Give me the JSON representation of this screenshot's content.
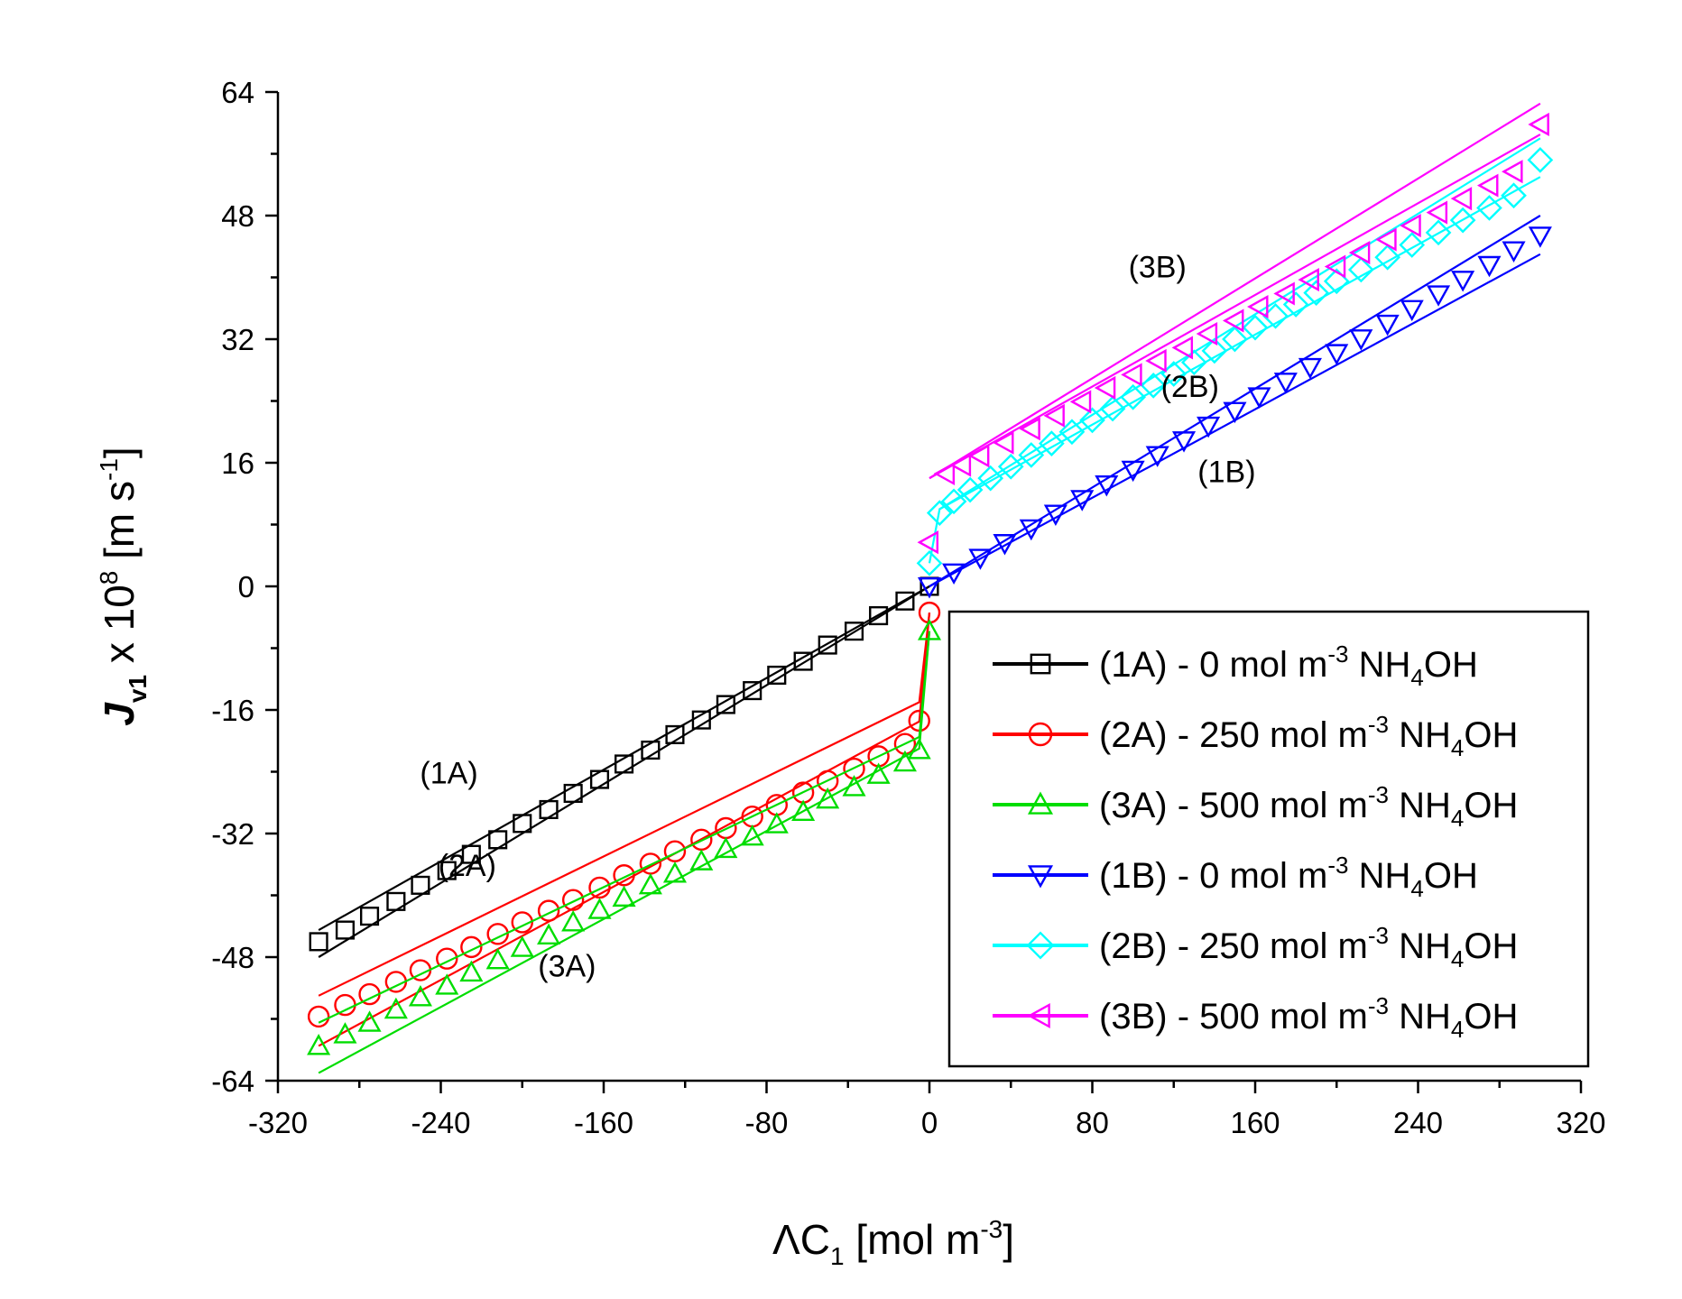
{
  "chart_data": {
    "type": "scatter",
    "title": "",
    "xlabel": {
      "prefix": "ΛC",
      "sub": "1",
      "unit_open": " [mol m",
      "unit_sup": "-3",
      "unit_close": "]"
    },
    "ylabel": {
      "main": "J",
      "sub": "v1",
      "mid": " x 10",
      "sup": "8",
      "unit_open": " [m s",
      "unit_sup": "-1",
      "unit_close": "]"
    },
    "xlim": [
      -320,
      320
    ],
    "ylim": [
      -64,
      64
    ],
    "xticks": [
      -320,
      -240,
      -160,
      -80,
      0,
      80,
      160,
      240,
      320
    ],
    "yticks": [
      -64,
      -48,
      -32,
      -16,
      0,
      16,
      32,
      48,
      64
    ],
    "xtick_labels": [
      "-320",
      "-240",
      "-160",
      "-80",
      "0",
      "80",
      "160",
      "240",
      "320"
    ],
    "ytick_labels": [
      "-64",
      "-48",
      "-32",
      "-16",
      "0",
      "16",
      "32",
      "48",
      "64"
    ],
    "legend": {
      "placement": "lower-right",
      "entries": [
        {
          "code": "(1A)",
          "text": " - 0 mol m",
          "sup": "-3",
          "tail": " NH",
          "sub": "4",
          "end": "OH"
        },
        {
          "code": "(2A)",
          "text": " - 250 mol m",
          "sup": "-3",
          "tail": " NH",
          "sub": "4",
          "end": "OH"
        },
        {
          "code": "(3A)",
          "text": " - 500 mol m",
          "sup": "-3",
          "tail": " NH",
          "sub": "4",
          "end": "OH"
        },
        {
          "code": "(1B)",
          "text": " - 0 mol m",
          "sup": "-3",
          "tail": " NH",
          "sub": "4",
          "end": "OH"
        },
        {
          "code": "(2B)",
          "text": " - 250 mol m",
          "sup": "-3",
          "tail": " NH",
          "sub": "4",
          "end": "OH"
        },
        {
          "code": "(3B)",
          "text": " - 500 mol m",
          "sup": "-3",
          "tail": " NH",
          "sub": "4",
          "end": "OH"
        }
      ]
    },
    "annotations": [
      {
        "text": "(1A)",
        "x": -236,
        "y": -25.5
      },
      {
        "text": "(2A)",
        "x": -227,
        "y": -37.5
      },
      {
        "text": "(3A)",
        "x": -178,
        "y": -50.5
      },
      {
        "text": "(3B)",
        "x": 112,
        "y": 40
      },
      {
        "text": "(2B)",
        "x": 128,
        "y": 24.5
      },
      {
        "text": "(1B)",
        "x": 146,
        "y": 13.5
      }
    ],
    "series": [
      {
        "name": "(1A) - 0 mol m-3 NH4OH",
        "color": "#000000",
        "marker": "square",
        "x": [
          -300,
          -287,
          -275,
          -262,
          -250,
          -237,
          -225,
          -212,
          -200,
          -187,
          -175,
          -162,
          -150,
          -137,
          -125,
          -112,
          -100,
          -87,
          -75,
          -62,
          -50,
          -37,
          -25,
          -12,
          0
        ],
        "y": [
          -46,
          -44.5,
          -42.7,
          -40.8,
          -38.7,
          -36.8,
          -34.7,
          -32.8,
          -30.7,
          -28.9,
          -26.8,
          -25,
          -23,
          -21.2,
          -19.2,
          -17.3,
          -15.3,
          -13.5,
          -11.5,
          -9.7,
          -7.6,
          -5.8,
          -3.8,
          -1.9,
          0
        ],
        "line": [
          [
            -300,
            -48
          ],
          [
            0,
            0
          ]
        ],
        "line2": [
          [
            -300,
            -44.5
          ],
          [
            0,
            0
          ]
        ]
      },
      {
        "name": "(2A) - 250 mol m-3 NH4OH",
        "color": "#ff0000",
        "marker": "circle",
        "x": [
          -300,
          -287,
          -275,
          -262,
          -250,
          -237,
          -225,
          -212,
          -200,
          -187,
          -175,
          -162,
          -150,
          -137,
          -125,
          -112,
          -100,
          -87,
          -75,
          -62,
          -50,
          -37,
          -25,
          -12,
          -5,
          0
        ],
        "y": [
          -55.7,
          -54.2,
          -52.8,
          -51.2,
          -49.7,
          -48.2,
          -46.7,
          -45,
          -43.5,
          -42,
          -40.6,
          -39,
          -37.4,
          -35.9,
          -34.3,
          -32.8,
          -31.3,
          -29.8,
          -28.3,
          -26.7,
          -25.2,
          -23.6,
          -22,
          -20.4,
          -17.4,
          -3.4
        ],
        "line": [
          [
            -300,
            -59.5
          ],
          [
            -5,
            -17.5
          ],
          [
            0,
            -3.4
          ]
        ],
        "line2": [
          [
            -300,
            -53
          ],
          [
            -5,
            -15
          ],
          [
            0,
            -3.4
          ]
        ]
      },
      {
        "name": "(3A) - 500 mol m-3 NH4OH",
        "color": "#00dd00",
        "marker": "triangle-up",
        "x": [
          -300,
          -287,
          -275,
          -262,
          -250,
          -237,
          -225,
          -212,
          -200,
          -187,
          -175,
          -162,
          -150,
          -137,
          -125,
          -112,
          -100,
          -87,
          -75,
          -62,
          -50,
          -37,
          -25,
          -12,
          -5,
          0
        ],
        "y": [
          -59.5,
          -58,
          -56.5,
          -54.8,
          -53.2,
          -51.7,
          -50,
          -48.4,
          -46.8,
          -45.2,
          -43.5,
          -41.9,
          -40.3,
          -38.7,
          -37.2,
          -35.6,
          -34,
          -32.4,
          -30.8,
          -29.2,
          -27.6,
          -26,
          -24.4,
          -22.8,
          -21.2,
          -5.8
        ],
        "line": [
          [
            -300,
            -63
          ],
          [
            -5,
            -21
          ],
          [
            0,
            -5.8
          ]
        ],
        "line2": [
          [
            -300,
            -56.5
          ],
          [
            -5,
            -19.5
          ],
          [
            0,
            -5.8
          ]
        ]
      },
      {
        "name": "(1B) - 0 mol m-3 NH4OH",
        "color": "#0000ff",
        "marker": "triangle-down",
        "x": [
          0,
          12,
          25,
          37,
          50,
          62,
          75,
          87,
          100,
          112,
          125,
          137,
          150,
          162,
          175,
          187,
          200,
          212,
          225,
          237,
          250,
          262,
          275,
          287,
          300
        ],
        "y": [
          0,
          1.8,
          3.7,
          5.6,
          7.5,
          9.4,
          11.3,
          13.2,
          15.1,
          17,
          18.9,
          20.8,
          22.7,
          24.6,
          26.5,
          28.4,
          30.2,
          32.1,
          34,
          35.9,
          37.8,
          39.7,
          41.6,
          43.5,
          45.4
        ],
        "line": [
          [
            0,
            0
          ],
          [
            300,
            43
          ]
        ],
        "line2": [
          [
            0,
            0
          ],
          [
            300,
            48
          ]
        ]
      },
      {
        "name": "(2B) - 250 mol m-3 NH4OH",
        "color": "#00ffff",
        "marker": "diamond",
        "x": [
          0,
          5,
          12,
          20,
          30,
          40,
          50,
          60,
          70,
          80,
          90,
          100,
          110,
          120,
          130,
          140,
          150,
          160,
          170,
          180,
          190,
          200,
          212,
          225,
          237,
          250,
          262,
          275,
          287,
          300
        ],
        "y": [
          3,
          9.5,
          11,
          12.5,
          14,
          15.5,
          17,
          18.5,
          20,
          21.5,
          23,
          24.5,
          26,
          27.5,
          29,
          30.5,
          32,
          33.5,
          35,
          36.5,
          38,
          39.5,
          41,
          42.6,
          44.2,
          45.8,
          47.4,
          49,
          50.6,
          55.2
        ],
        "line": [
          [
            0,
            3
          ],
          [
            5,
            10
          ],
          [
            300,
            53
          ]
        ],
        "line2": [
          [
            5,
            10
          ],
          [
            300,
            58
          ]
        ]
      },
      {
        "name": "(3B) - 500 mol m-3 NH4OH",
        "color": "#ff00ff",
        "marker": "triangle-left",
        "x": [
          0,
          8,
          16,
          25,
          37,
          50,
          62,
          75,
          87,
          100,
          112,
          125,
          137,
          150,
          162,
          175,
          187,
          200,
          212,
          225,
          237,
          250,
          262,
          275,
          287,
          300
        ],
        "y": [
          5.7,
          14.6,
          15.7,
          16.9,
          18.6,
          20.4,
          22.1,
          23.9,
          25.7,
          27.4,
          29.2,
          30.9,
          32.7,
          34.4,
          36.2,
          37.9,
          39.7,
          41.4,
          43.2,
          44.9,
          46.7,
          48.4,
          50.2,
          51.9,
          53.7,
          59.8
        ],
        "line": [
          [
            0,
            14
          ],
          [
            300,
            62.5
          ]
        ],
        "line2": [
          [
            0,
            14
          ],
          [
            300,
            58.5
          ]
        ]
      }
    ]
  }
}
